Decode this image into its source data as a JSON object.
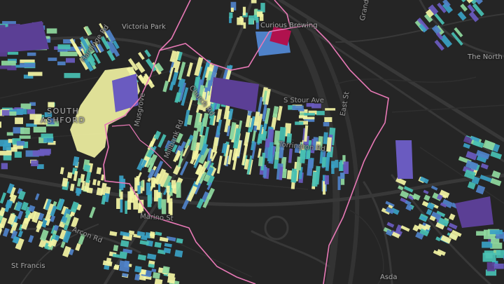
{
  "map": {
    "area_label": [
      "SOUTH",
      "ASHFORD"
    ],
    "place_labels": {
      "victoria_park": "Victoria Park",
      "curious_brewing": "Curious Brewing",
      "asda": "Asda",
      "the_north": "The North",
      "st_francis": "St Francis"
    },
    "street_labels": {
      "s_stour_ave": "S Stour Ave",
      "torrington_rd": "Torrington Rd",
      "marino_st": "Marino St",
      "arcon_rd": "Arcon Rd",
      "musgrove": "Musgrove",
      "millbank_rd": "Millbank Rd",
      "church_rd": "Church Rd",
      "east_st": "East St",
      "hardinge_rd": "Hardinge Rd",
      "grand": "Grand"
    },
    "colors": {
      "background": "#252525",
      "roads": "#3a3a3a",
      "boundary": "#e879b6",
      "ramp": [
        "#5b3f95",
        "#6a5bc0",
        "#4f82c9",
        "#3aa1c4",
        "#48c0b3",
        "#8fd99e",
        "#f4f5a4"
      ],
      "accent_building": "#b0124e"
    }
  }
}
